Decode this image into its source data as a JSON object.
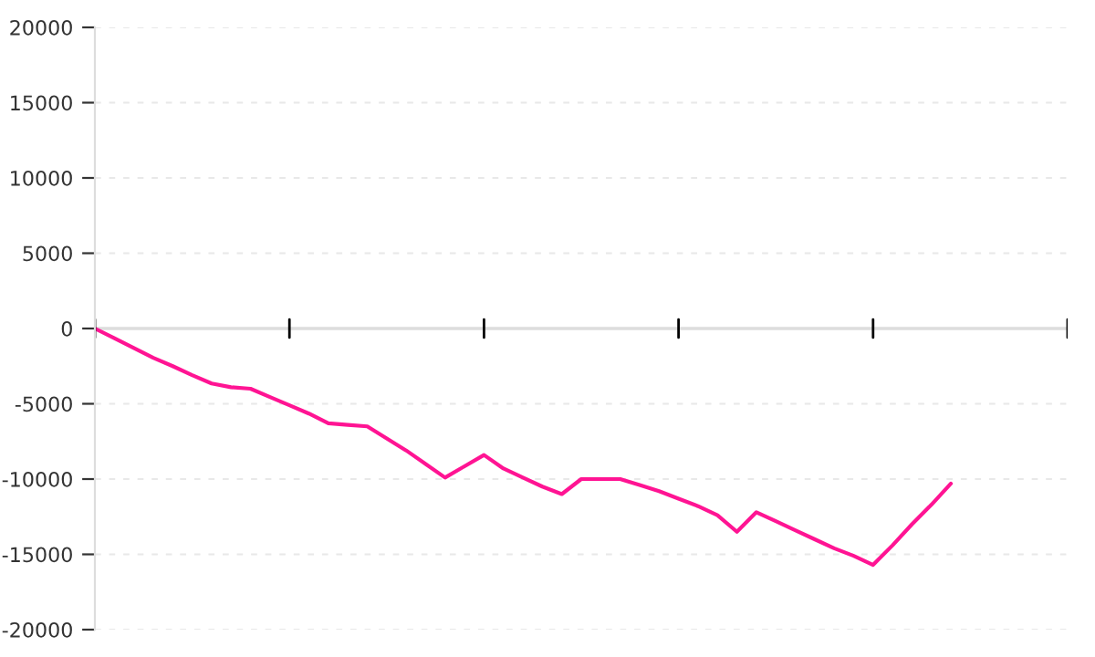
{
  "chart_data": {
    "type": "line",
    "categories": [
      null,
      null,
      null,
      null,
      null,
      null,
      null,
      null,
      null,
      null,
      null,
      null,
      null,
      null,
      null,
      null,
      null,
      null,
      null,
      null,
      null,
      null,
      null,
      null,
      null,
      null,
      null,
      null,
      null,
      null,
      null,
      null,
      null,
      null,
      null,
      null,
      null,
      null,
      null,
      null,
      null,
      null,
      null,
      null,
      null
    ],
    "series": [
      {
        "color": "#ff1493",
        "values": [
          0,
          -650,
          -1300,
          -1950,
          -2500,
          -3100,
          -3650,
          -3900,
          -4000,
          -4550,
          -5100,
          -5650,
          -6300,
          -6400,
          -6500,
          -7300,
          -8100,
          -9000,
          -9900,
          -9150,
          -8400,
          -9300,
          -9900,
          -10500,
          -11000,
          -10000,
          -10000,
          -10000,
          -10400,
          -10800,
          -11300,
          -11800,
          -12400,
          -13500,
          -12200,
          -12800,
          -13400,
          -14000,
          -14600,
          -15100,
          -15700,
          -14400,
          -13000,
          -11700,
          -10300
        ]
      }
    ],
    "ylim": [
      -20000,
      20000
    ],
    "yticks": [
      -20000,
      -15000,
      -10000,
      -5000,
      0,
      5000,
      10000,
      15000,
      20000
    ],
    "grid": "y",
    "tick_labels": "y",
    "line_style": "solid",
    "marker": "none"
  }
}
